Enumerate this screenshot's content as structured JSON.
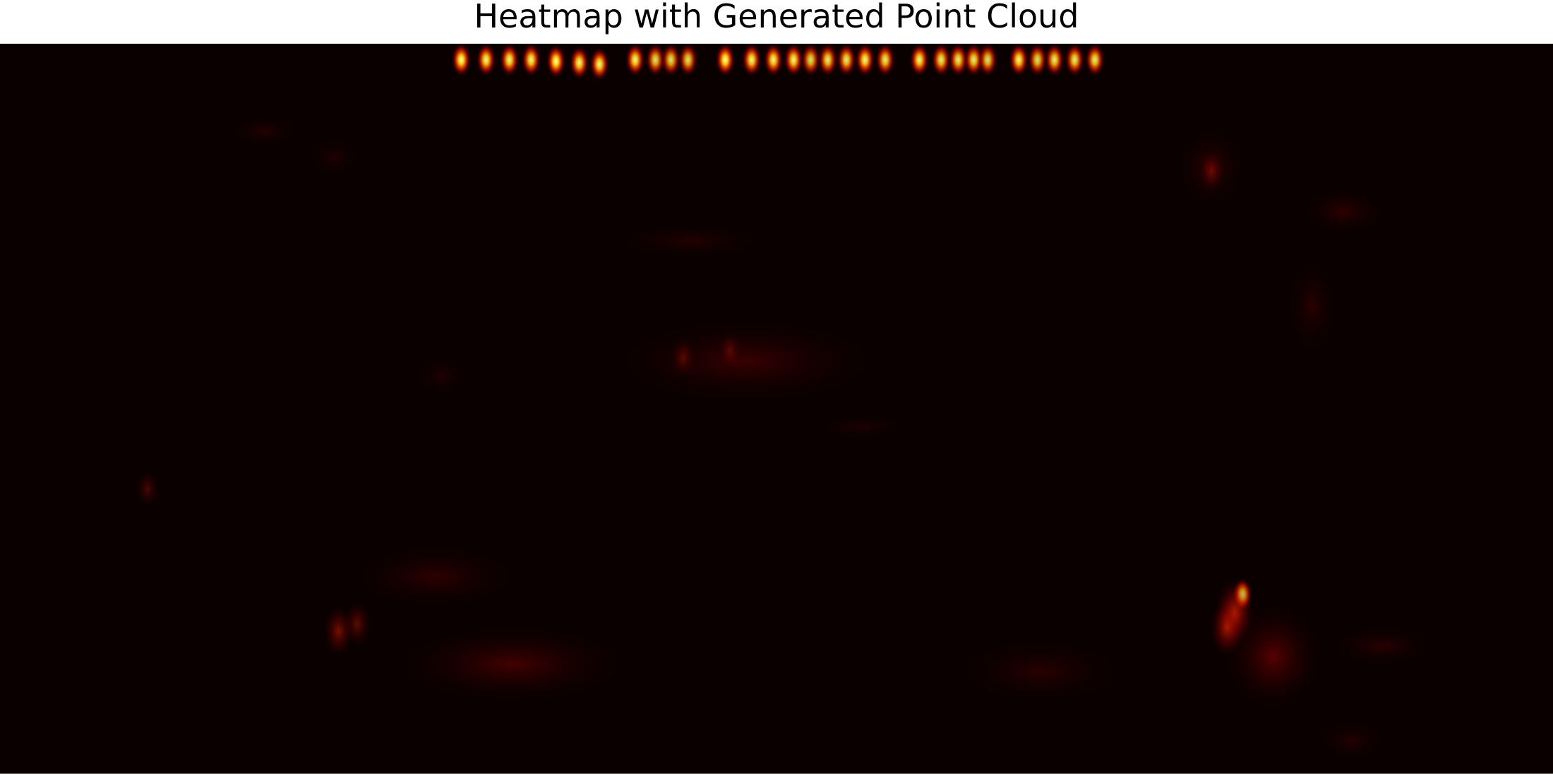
{
  "chart_data": {
    "type": "heatmap",
    "title": "Heatmap with Generated Point Cloud",
    "xlabel": "",
    "ylabel": "",
    "axes": "off",
    "grid": false,
    "colormap": "hot",
    "colors": {
      "background": "#0b0000",
      "low": "#3c0000",
      "mid": "#ff2000",
      "high": "#ffff9a"
    },
    "x_range": [
      0,
      1
    ],
    "y_range": [
      0,
      1
    ],
    "hotspots": [
      {
        "x": 0.297,
        "y": 0.022,
        "intensity": 1.0
      },
      {
        "x": 0.313,
        "y": 0.022,
        "intensity": 0.95
      },
      {
        "x": 0.328,
        "y": 0.022,
        "intensity": 0.95
      },
      {
        "x": 0.342,
        "y": 0.022,
        "intensity": 0.95
      },
      {
        "x": 0.358,
        "y": 0.024,
        "intensity": 1.0
      },
      {
        "x": 0.373,
        "y": 0.026,
        "intensity": 0.95
      },
      {
        "x": 0.386,
        "y": 0.028,
        "intensity": 0.95
      },
      {
        "x": 0.409,
        "y": 0.022,
        "intensity": 0.95
      },
      {
        "x": 0.422,
        "y": 0.022,
        "intensity": 0.85
      },
      {
        "x": 0.432,
        "y": 0.022,
        "intensity": 0.85
      },
      {
        "x": 0.443,
        "y": 0.022,
        "intensity": 0.85
      },
      {
        "x": 0.467,
        "y": 0.022,
        "intensity": 1.0
      },
      {
        "x": 0.484,
        "y": 0.022,
        "intensity": 0.95
      },
      {
        "x": 0.498,
        "y": 0.022,
        "intensity": 0.95
      },
      {
        "x": 0.511,
        "y": 0.022,
        "intensity": 0.95
      },
      {
        "x": 0.522,
        "y": 0.022,
        "intensity": 0.85
      },
      {
        "x": 0.533,
        "y": 0.022,
        "intensity": 0.9
      },
      {
        "x": 0.545,
        "y": 0.022,
        "intensity": 0.9
      },
      {
        "x": 0.557,
        "y": 0.022,
        "intensity": 0.95
      },
      {
        "x": 0.57,
        "y": 0.022,
        "intensity": 0.9
      },
      {
        "x": 0.592,
        "y": 0.022,
        "intensity": 0.95
      },
      {
        "x": 0.606,
        "y": 0.022,
        "intensity": 0.9
      },
      {
        "x": 0.617,
        "y": 0.022,
        "intensity": 0.9
      },
      {
        "x": 0.627,
        "y": 0.022,
        "intensity": 0.9
      },
      {
        "x": 0.636,
        "y": 0.022,
        "intensity": 0.85
      },
      {
        "x": 0.656,
        "y": 0.022,
        "intensity": 0.95
      },
      {
        "x": 0.668,
        "y": 0.022,
        "intensity": 0.85
      },
      {
        "x": 0.679,
        "y": 0.022,
        "intensity": 0.9
      },
      {
        "x": 0.692,
        "y": 0.022,
        "intensity": 0.9
      },
      {
        "x": 0.705,
        "y": 0.022,
        "intensity": 0.9
      },
      {
        "x": 0.8,
        "y": 0.755,
        "intensity": 0.9
      },
      {
        "x": 0.795,
        "y": 0.78,
        "intensity": 0.75
      },
      {
        "x": 0.79,
        "y": 0.8,
        "intensity": 0.6
      },
      {
        "x": 0.218,
        "y": 0.805,
        "intensity": 0.45
      },
      {
        "x": 0.23,
        "y": 0.795,
        "intensity": 0.35
      },
      {
        "x": 0.44,
        "y": 0.43,
        "intensity": 0.28
      },
      {
        "x": 0.47,
        "y": 0.42,
        "intensity": 0.22
      },
      {
        "x": 0.78,
        "y": 0.175,
        "intensity": 0.3
      },
      {
        "x": 0.095,
        "y": 0.61,
        "intensity": 0.2
      }
    ],
    "faint_regions": [
      {
        "x": 0.26,
        "y": 0.8,
        "w": 0.14,
        "h": 0.1,
        "intensity": 0.22
      },
      {
        "x": 0.23,
        "y": 0.69,
        "w": 0.1,
        "h": 0.08,
        "intensity": 0.14
      },
      {
        "x": 0.4,
        "y": 0.38,
        "w": 0.16,
        "h": 0.11,
        "intensity": 0.18
      },
      {
        "x": 0.4,
        "y": 0.25,
        "w": 0.09,
        "h": 0.04,
        "intensity": 0.1
      },
      {
        "x": 0.76,
        "y": 0.12,
        "w": 0.04,
        "h": 0.1,
        "intensity": 0.16
      },
      {
        "x": 0.84,
        "y": 0.2,
        "w": 0.05,
        "h": 0.06,
        "intensity": 0.14
      },
      {
        "x": 0.83,
        "y": 0.3,
        "w": 0.03,
        "h": 0.12,
        "intensity": 0.12
      },
      {
        "x": 0.79,
        "y": 0.77,
        "w": 0.06,
        "h": 0.14,
        "intensity": 0.3
      },
      {
        "x": 0.86,
        "y": 0.8,
        "w": 0.06,
        "h": 0.05,
        "intensity": 0.12
      },
      {
        "x": 0.85,
        "y": 0.93,
        "w": 0.04,
        "h": 0.05,
        "intensity": 0.1
      },
      {
        "x": 0.62,
        "y": 0.82,
        "w": 0.1,
        "h": 0.08,
        "intensity": 0.12
      },
      {
        "x": 0.15,
        "y": 0.1,
        "w": 0.04,
        "h": 0.04,
        "intensity": 0.1
      },
      {
        "x": 0.2,
        "y": 0.13,
        "w": 0.03,
        "h": 0.05,
        "intensity": 0.08
      },
      {
        "x": 0.27,
        "y": 0.43,
        "w": 0.03,
        "h": 0.05,
        "intensity": 0.08
      },
      {
        "x": 0.53,
        "y": 0.51,
        "w": 0.05,
        "h": 0.03,
        "intensity": 0.08
      }
    ]
  }
}
